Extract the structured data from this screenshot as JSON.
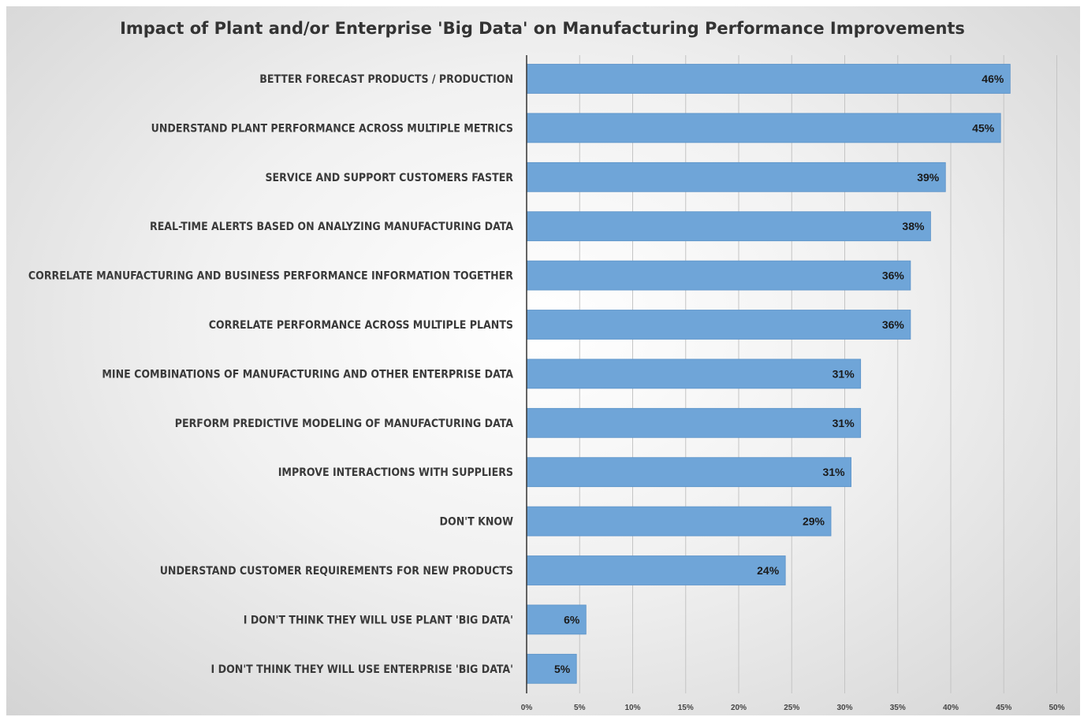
{
  "chart_data": {
    "type": "bar",
    "orientation": "horizontal",
    "title": "Impact of Plant and/or Enterprise 'Big Data' on Manufacturing Performance Improvements",
    "categories": [
      "BETTER FORECAST PRODUCTS / PRODUCTION",
      "UNDERSTAND PLANT PERFORMANCE ACROSS MULTIPLE METRICS",
      "SERVICE AND SUPPORT CUSTOMERS FASTER",
      "REAL-TIME ALERTS BASED ON ANALYZING MANUFACTURING DATA",
      "CORRELATE MANUFACTURING AND BUSINESS PERFORMANCE INFORMATION TOGETHER",
      "CORRELATE PERFORMANCE ACROSS MULTIPLE PLANTS",
      "MINE COMBINATIONS OF MANUFACTURING AND OTHER ENTERPRISE DATA",
      "PERFORM PREDICTIVE MODELING OF MANUFACTURING DATA",
      "IMPROVE INTERACTIONS WITH SUPPLIERS",
      "DON'T KNOW",
      "UNDERSTAND CUSTOMER REQUIREMENTS FOR NEW PRODUCTS",
      "I DON'T THINK THEY WILL USE PLANT 'BIG DATA'",
      "I DON'T THINK THEY WILL USE ENTERPRISE 'BIG DATA'"
    ],
    "values": [
      45.6,
      44.7,
      39.5,
      38.1,
      36.2,
      36.2,
      31.5,
      31.5,
      30.6,
      28.7,
      24.4,
      5.6,
      4.7
    ],
    "value_labels": [
      "46%",
      "45%",
      "39%",
      "38%",
      "36%",
      "36%",
      "31%",
      "31%",
      "31%",
      "29%",
      "24%",
      "6%",
      "5%"
    ],
    "xlim": [
      0,
      50
    ],
    "xticks": [
      0,
      5,
      10,
      15,
      20,
      25,
      30,
      35,
      40,
      45,
      50
    ],
    "xtick_labels": [
      "0%",
      "5%",
      "10%",
      "15%",
      "20%",
      "25%",
      "30%",
      "35%",
      "40%",
      "45%",
      "50%"
    ],
    "xlabel": "",
    "ylabel": "",
    "grid": "vertical",
    "legend": "none",
    "colors": {
      "bar_fill": "#6fa5d8",
      "bar_stroke": "#5b92c8",
      "gridline": "#c4c4c4",
      "axis": "#333333",
      "title": "#333333"
    }
  }
}
